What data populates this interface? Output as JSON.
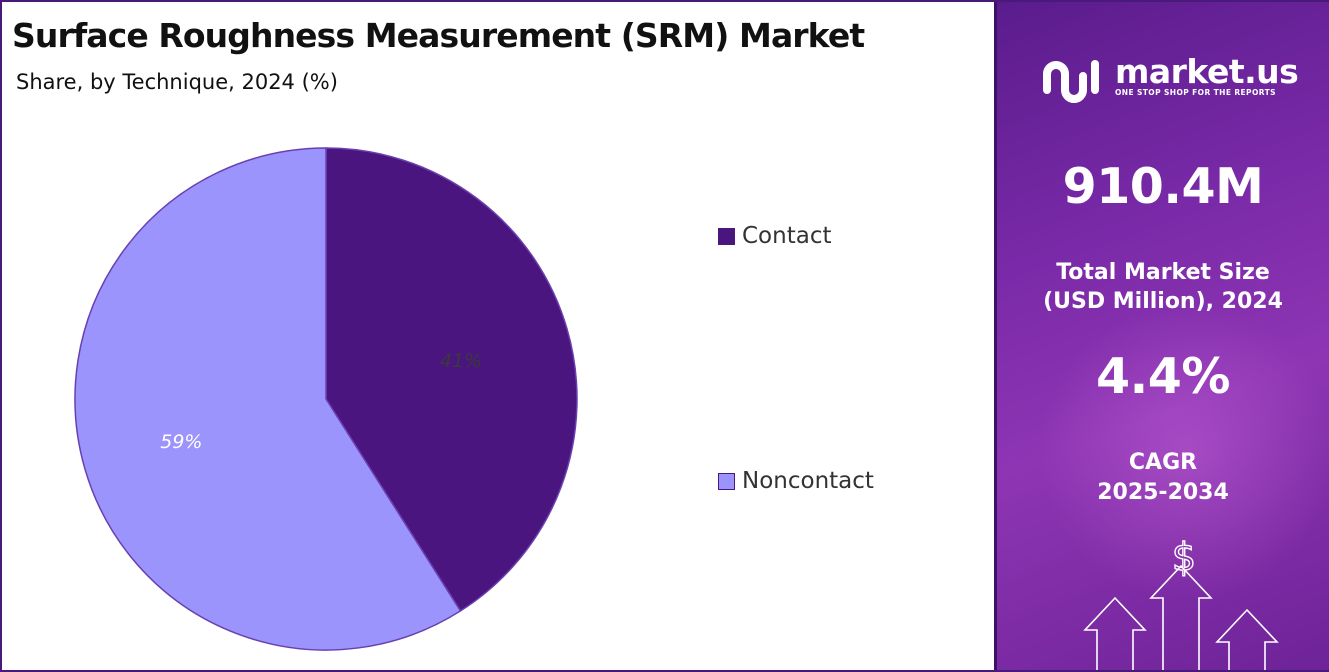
{
  "title": "Surface Roughness Measurement (SRM) Market",
  "subtitle": "Share, by Technique, 2024 (%)",
  "chart_data": {
    "type": "pie",
    "categories": [
      "Contact",
      "Noncontact"
    ],
    "values": [
      41,
      59
    ],
    "labels": [
      "41%",
      "59%"
    ],
    "colors": [
      "#4b1580",
      "#9a94fc"
    ],
    "label_colors": [
      "#3a3a3a",
      "#ffffff"
    ],
    "legend_position": "right"
  },
  "brand": {
    "name": "market.us",
    "tagline": "ONE STOP SHOP FOR THE REPORTS"
  },
  "stats": {
    "market_size_value": "910.4M",
    "market_size_label_line1": "Total Market Size",
    "market_size_label_line2": "(USD Million), 2024",
    "cagr_value": "4.4%",
    "cagr_label_line1": "CAGR",
    "cagr_label_line2": "2025-2034"
  },
  "icons": {
    "logo": "market-us-logo-icon",
    "currency": "dollar-icon",
    "growth": "arrow-up-icon"
  }
}
